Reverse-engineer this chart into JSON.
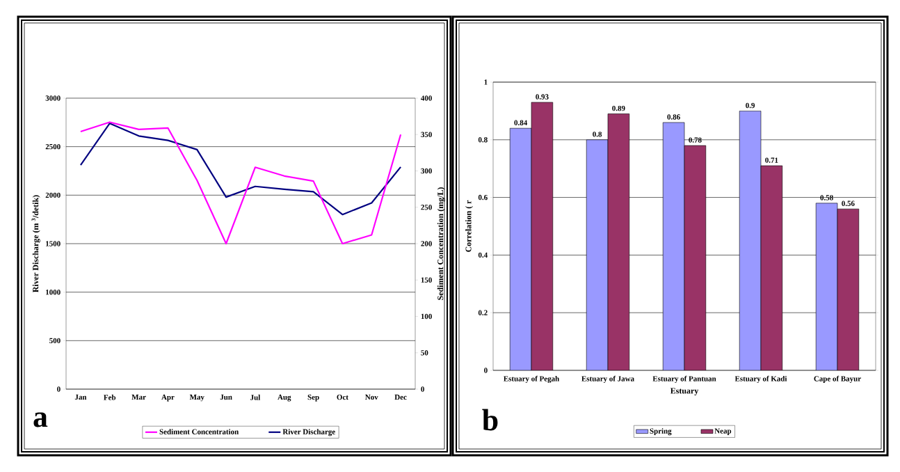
{
  "chart_data": [
    {
      "type": "line",
      "categories": [
        "Jan",
        "Feb",
        "Mar",
        "Apr",
        "May",
        "Jun",
        "Jul",
        "Aug",
        "Sep",
        "Oct",
        "Nov",
        "Dec"
      ],
      "series": [
        {
          "name": "Sediment Concentration",
          "color": "#ff00ff",
          "axis": "y2",
          "values": [
            354,
            367,
            357,
            359,
            287,
            200,
            305,
            293,
            286,
            200,
            212,
            350
          ]
        },
        {
          "name": "River Discharge",
          "color": "#000080",
          "values": [
            2310,
            2740,
            2610,
            2565,
            2470,
            1980,
            2090,
            2060,
            2035,
            1800,
            1920,
            2290
          ]
        }
      ],
      "ylabel": "River Discharge (m $^{3}$/detik)",
      "y2label": "Sediment Concentration (mg/L)",
      "ylim": [
        0,
        3000
      ],
      "yticks": [
        0,
        500,
        1000,
        1500,
        2000,
        2500,
        3000
      ],
      "y2lim": [
        0,
        400
      ],
      "y2ticks": [
        0,
        50,
        100,
        150,
        200,
        250,
        300,
        350,
        400
      ],
      "grid": "y",
      "legend": "bottom",
      "marker": "none",
      "line_style": "solid",
      "annotations": [
        "a"
      ]
    },
    {
      "type": "bar",
      "categories": [
        "Estuary of Pegah",
        "Estuary of Jawa",
        "Estuary of Pantuan",
        "Estuary of Kadi",
        "Cape of Bayur"
      ],
      "series": [
        {
          "name": "Spring",
          "color": "#9999ff",
          "values": [
            0.84,
            0.8,
            0.86,
            0.9,
            0.58
          ]
        },
        {
          "name": "Neap",
          "color": "#993366",
          "values": [
            0.93,
            0.89,
            0.78,
            0.71,
            0.56
          ]
        }
      ],
      "xlabel": "Estuary",
      "ylabel": "Correlation ( r",
      "ylim": [
        0,
        1
      ],
      "yticks": [
        0,
        0.2,
        0.4,
        0.6,
        0.8,
        1
      ],
      "grid": "y",
      "legend": "bottom",
      "data_labels": true,
      "annotations": [
        "b"
      ]
    }
  ]
}
